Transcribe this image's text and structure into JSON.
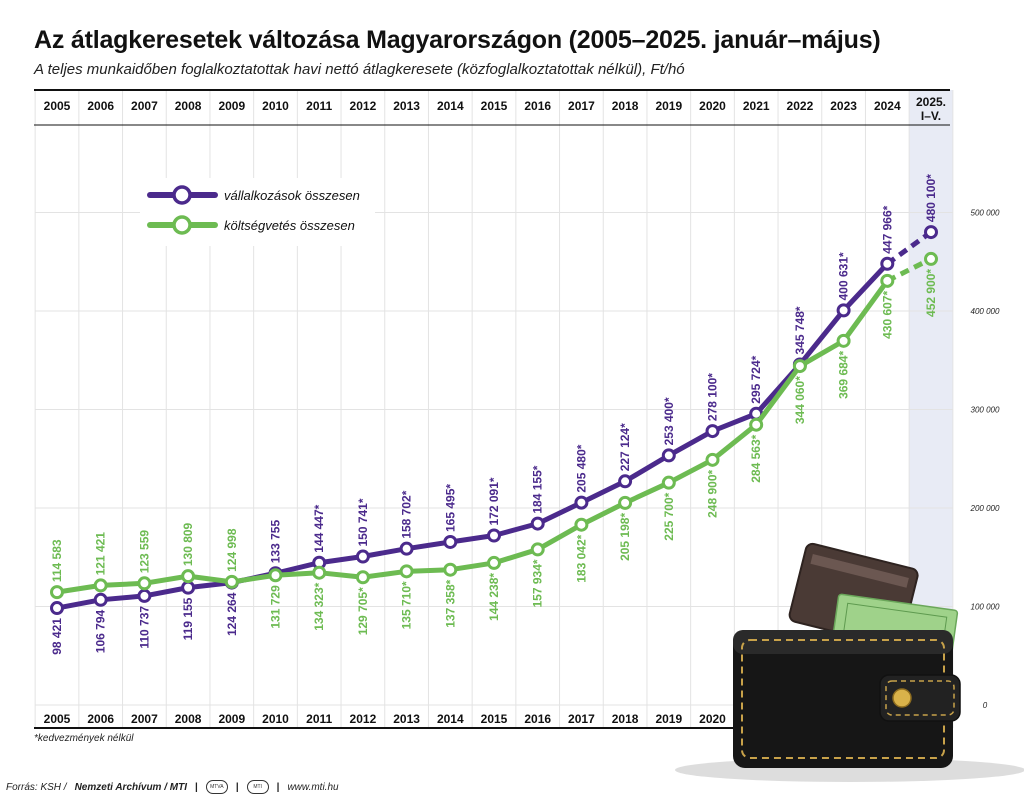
{
  "title": "Az átlagkeresetek változása Magyarországon (2005–2025. január–május)",
  "subtitle": "A teljes munkaidőben foglalkoztatottak havi nettó átlagkeresete (közfoglalkoztatottak nélkül), Ft/hó",
  "footnote": "*kedvezmények nélkül",
  "footer": {
    "source_prefix": "Forrás: KSH /",
    "source_main": "Nemzeti Archívum / MTI",
    "badge1": "MTVA",
    "badge2": "MTI",
    "url": "www.mti.hu"
  },
  "colors": {
    "business": "#4b2a8c",
    "budget": "#6dbb52",
    "highlight": "#e8ebf5"
  },
  "chart_data": {
    "type": "line",
    "categories": [
      "2005",
      "2006",
      "2007",
      "2008",
      "2009",
      "2010",
      "2011",
      "2012",
      "2013",
      "2014",
      "2015",
      "2016",
      "2017",
      "2018",
      "2019",
      "2020",
      "2021",
      "2022",
      "2023",
      "2024",
      "2025."
    ],
    "top_last_label": [
      "2025.",
      "I–V."
    ],
    "bottom_last_label": "",
    "ylim": [
      0,
      500000
    ],
    "y_ticks": [
      0,
      100000,
      200000,
      300000,
      400000,
      500000
    ],
    "y_tick_labels": [
      "0",
      "100 000",
      "200 000",
      "300 000",
      "400 000",
      "500 000"
    ],
    "grid": true,
    "legend_position": "top-left",
    "series": [
      {
        "name": "vállalkozások összesen",
        "key": "business",
        "values": [
          98421,
          106794,
          110737,
          119155,
          124264,
          133755,
          144447,
          150741,
          158702,
          165495,
          172091,
          184155,
          205480,
          227124,
          253400,
          278100,
          295724,
          345748,
          400631,
          447966,
          480100
        ],
        "labels": [
          "98 421",
          "106 794",
          "110 737",
          "119 155",
          "124 264",
          "133 755",
          "144 447*",
          "150 741*",
          "158 702*",
          "165 495*",
          "172 091*",
          "184 155*",
          "205 480*",
          "227 124*",
          "253 400*",
          "278 100*",
          "295 724*",
          "345 748*",
          "400 631*",
          "447 966*",
          "480 100*"
        ],
        "label_side": [
          "below",
          "below",
          "below",
          "below",
          "below",
          "above",
          "above",
          "above",
          "above",
          "above",
          "above",
          "above",
          "above",
          "above",
          "above",
          "above",
          "above",
          "above",
          "above",
          "above",
          "above"
        ]
      },
      {
        "name": "költségvetés összesen",
        "key": "budget",
        "values": [
          114583,
          121421,
          123559,
          130809,
          124998,
          131729,
          134323,
          129705,
          135710,
          137358,
          144238,
          157934,
          183042,
          205198,
          225700,
          248900,
          284563,
          344060,
          369684,
          430607,
          452900
        ],
        "labels": [
          "114 583",
          "121 421",
          "123 559",
          "130 809",
          "124 998",
          "131 729",
          "134 323*",
          "129 705*",
          "135 710*",
          "137 358*",
          "144 238*",
          "157 934*",
          "183 042*",
          "205 198*",
          "225 700*",
          "248 900*",
          "284 563*",
          "344 060*",
          "369 684*",
          "430 607*",
          "452 900*"
        ],
        "label_side": [
          "above",
          "above",
          "above",
          "above",
          "above",
          "below",
          "below",
          "below",
          "below",
          "below",
          "below",
          "below",
          "below",
          "below",
          "below",
          "below",
          "below",
          "below",
          "below",
          "below",
          "below"
        ]
      }
    ]
  }
}
